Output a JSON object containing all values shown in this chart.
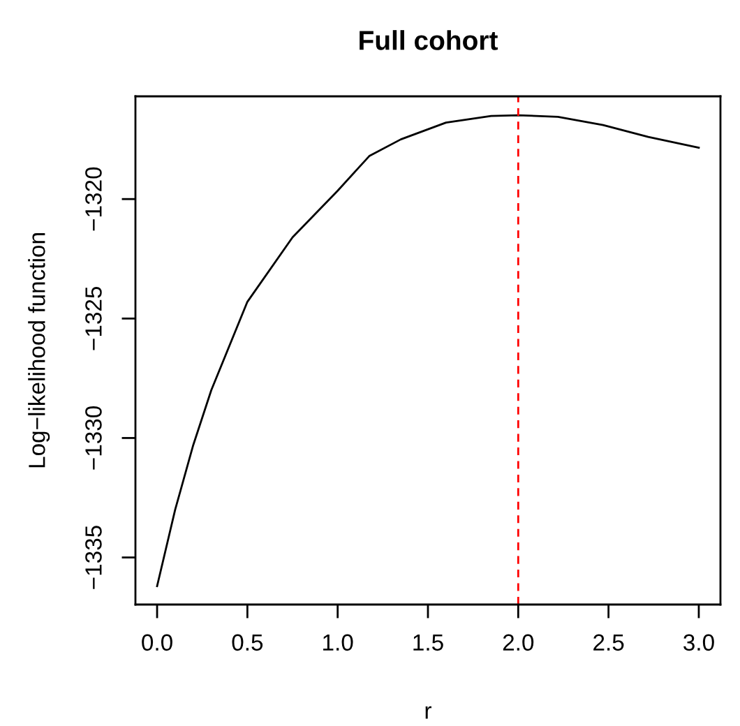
{
  "chart_data": {
    "type": "line",
    "title": "Full cohort",
    "xlabel": "r",
    "ylabel": "Log−likelihood function",
    "x": [
      0,
      0.1,
      0.2,
      0.3,
      0.5,
      0.75,
      1.0,
      1.175,
      1.35,
      1.6,
      1.85,
      2.0,
      2.22,
      2.47,
      2.72,
      3.0
    ],
    "series": [
      {
        "color": "#000000",
        "values": [
          -1336.2,
          -1333.0,
          -1330.3,
          -1328.0,
          -1324.3,
          -1321.6,
          -1319.65,
          -1318.2,
          -1317.5,
          -1316.8,
          -1316.52,
          -1316.49,
          -1316.56,
          -1316.9,
          -1317.4,
          -1317.85
        ]
      }
    ],
    "xlim": [
      -0.12,
      3.12
    ],
    "ylim": [
      -1336.97,
      -1315.7
    ],
    "xticks": [
      {
        "value": 0,
        "label": "0.0"
      },
      {
        "value": 0.5,
        "label": "0.5"
      },
      {
        "value": 1.0,
        "label": "1.0"
      },
      {
        "value": 1.5,
        "label": "1.5"
      },
      {
        "value": 2.0,
        "label": "2.0"
      },
      {
        "value": 2.5,
        "label": "2.5"
      },
      {
        "value": 3.0,
        "label": "3.0"
      }
    ],
    "yticks": [
      {
        "value": -1335,
        "label": "−1335"
      },
      {
        "value": -1330,
        "label": "−1330"
      },
      {
        "value": -1325,
        "label": "−1325"
      },
      {
        "value": -1320,
        "label": "−1320"
      }
    ],
    "ref_lines": [
      {
        "axis": "x",
        "value": 2.0,
        "color": "#ff0000",
        "line_style": "dashed"
      }
    ],
    "grid": false,
    "legend": false,
    "line_style": "solid",
    "marker": "none"
  }
}
